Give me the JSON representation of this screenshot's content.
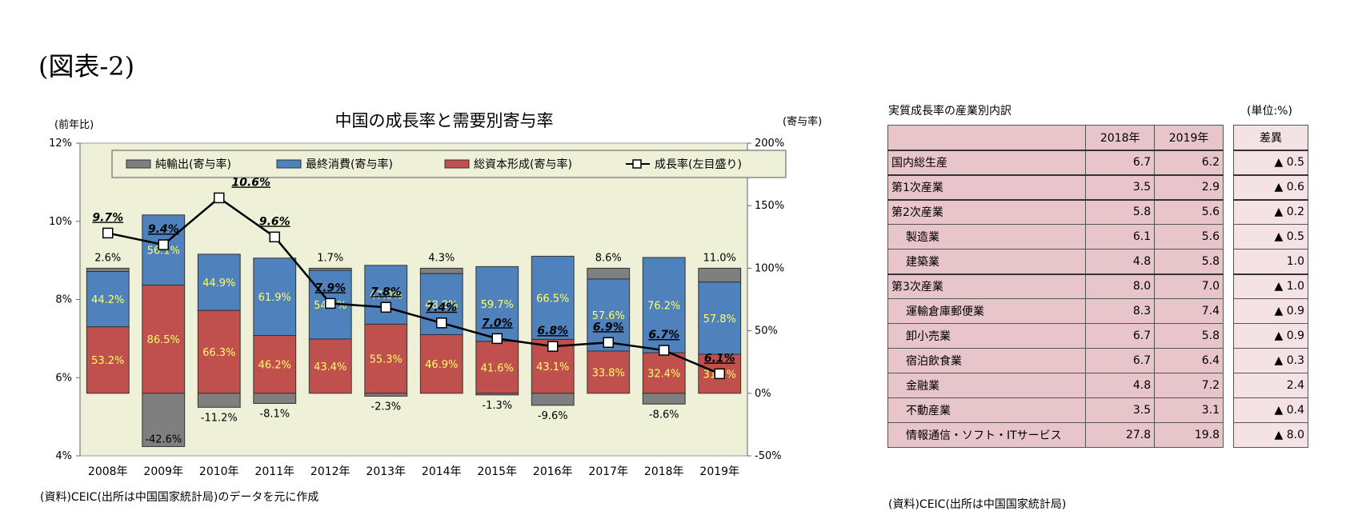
{
  "figure_label": "(図表-2)",
  "chart_data": {
    "type": "bar",
    "title": "中国の成長率と需要別寄与率",
    "left_axis_label": "(前年比)",
    "right_axis_label": "(寄与率)",
    "left_ylim": [
      4,
      12
    ],
    "left_ticks": [
      "12%",
      "10%",
      "8%",
      "6%",
      "4%"
    ],
    "right_ylim": [
      -50,
      200
    ],
    "right_ticks": [
      "200%",
      "150%",
      "100%",
      "50%",
      "0%",
      "-50%"
    ],
    "categories": [
      "2008年",
      "2009年",
      "2010年",
      "2011年",
      "2012年",
      "2013年",
      "2014年",
      "2015年",
      "2016年",
      "2017年",
      "2018年",
      "2019年"
    ],
    "legend_position": "top-center",
    "series": [
      {
        "name": "純輸出(寄与率)",
        "color": "#7f7f7f",
        "axis": "right",
        "values": [
          2.6,
          -42.6,
          -11.2,
          -8.1,
          1.7,
          -2.3,
          4.3,
          -1.3,
          -9.6,
          8.6,
          -8.6,
          11.0
        ]
      },
      {
        "name": "最終消費(寄与率)",
        "color": "#4f81bd",
        "axis": "right",
        "values": [
          44.2,
          56.1,
          44.9,
          61.9,
          54.9,
          47.0,
          48.8,
          59.7,
          66.5,
          57.6,
          76.2,
          57.8
        ]
      },
      {
        "name": "総資本形成(寄与率)",
        "color": "#c0504d",
        "axis": "right",
        "values": [
          53.2,
          86.5,
          66.3,
          46.2,
          43.4,
          55.3,
          46.9,
          41.6,
          43.1,
          33.8,
          32.4,
          31.2
        ]
      },
      {
        "name": "成長率(左目盛り)",
        "color": "#000000",
        "axis": "left",
        "type": "line",
        "values": [
          9.7,
          9.4,
          10.6,
          9.6,
          7.9,
          7.8,
          7.4,
          7.0,
          6.8,
          6.9,
          6.7,
          6.1
        ]
      }
    ],
    "source": "(資料)CEIC(出所は中国国家統計局)のデータを元に作成"
  },
  "table": {
    "caption": "実質成長率の産業別内訳",
    "unit": "(単位:%)",
    "headers": [
      "",
      "2018年",
      "2019年"
    ],
    "diff_header": "差異",
    "rows": [
      {
        "label": "国内総生産",
        "v2018": "6.7",
        "v2019": "6.2",
        "diff": "▲ 0.5"
      },
      {
        "label": "第1次産業",
        "v2018": "3.5",
        "v2019": "2.9",
        "diff": "▲ 0.6"
      },
      {
        "label": "第2次産業",
        "v2018": "5.8",
        "v2019": "5.6",
        "diff": "▲ 0.2"
      },
      {
        "label": "製造業",
        "v2018": "6.1",
        "v2019": "5.6",
        "diff": "▲ 0.5"
      },
      {
        "label": "建築業",
        "v2018": "4.8",
        "v2019": "5.8",
        "diff": "1.0"
      },
      {
        "label": "第3次産業",
        "v2018": "8.0",
        "v2019": "7.0",
        "diff": "▲ 1.0"
      },
      {
        "label": "運輸倉庫郵便業",
        "v2018": "8.3",
        "v2019": "7.4",
        "diff": "▲ 0.9"
      },
      {
        "label": "卸小売業",
        "v2018": "6.7",
        "v2019": "5.8",
        "diff": "▲ 0.9"
      },
      {
        "label": "宿泊飲食業",
        "v2018": "6.7",
        "v2019": "6.4",
        "diff": "▲ 0.3"
      },
      {
        "label": "金融業",
        "v2018": "4.8",
        "v2019": "7.2",
        "diff": "2.4"
      },
      {
        "label": "不動産業",
        "v2018": "3.5",
        "v2019": "3.1",
        "diff": "▲ 0.4"
      },
      {
        "label": "情報通信・ソフト・ITサービス",
        "v2018": "27.8",
        "v2019": "19.8",
        "diff": "▲ 8.0"
      }
    ],
    "source": "(資料)CEIC(出所は中国国家統計局)"
  }
}
